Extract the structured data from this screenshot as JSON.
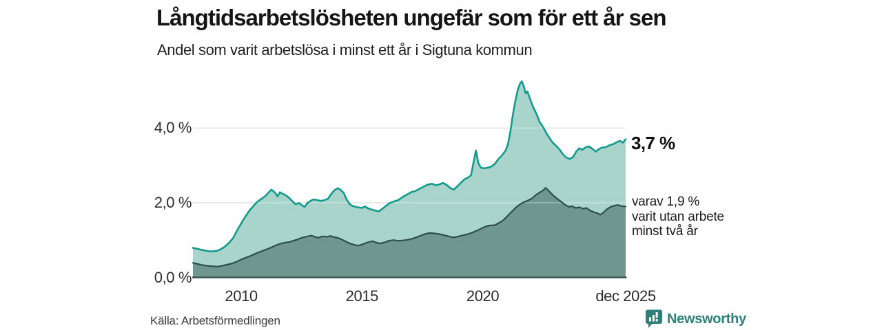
{
  "header": {
    "title": "Långtidsarbetslösheten ungefär som för ett år sen",
    "subtitle": "Andel som varit arbetslösa i minst ett år i Sigtuna kommun"
  },
  "annotations": {
    "latest_total": "3,7 %",
    "breakdown_lines": [
      "varav 1,9 %",
      "varit utan arbete",
      "minst två år"
    ]
  },
  "footer": {
    "source": "Källa: Arbetsförmedlingen",
    "brand": "Newsworthy",
    "brand_icon": "bar-chart-bubble-icon"
  },
  "colors": {
    "series_total_line": "#149a8b",
    "series_total_fill": "#a8d4cc",
    "series_two_years_line": "#2e4f49",
    "series_two_years_fill": "#6f968f",
    "gridline": "#d9d9d9",
    "baseline": "#3a5750",
    "brand_teal": "#2c8078"
  },
  "chart_data": {
    "type": "area",
    "title": "Andel som varit arbetslösa i minst ett år i Sigtuna kommun",
    "unit": "%",
    "xlim": [
      2008,
      2025.92
    ],
    "ylim": [
      0,
      5.6
    ],
    "grid": "horizontal",
    "legend": "none",
    "y_ticks": [
      {
        "label": "4,0 %",
        "value": 4.0
      },
      {
        "label": "2,0 %",
        "value": 2.0
      },
      {
        "label": "0,0 %",
        "value": 0.0
      }
    ],
    "x_ticks": [
      {
        "label": "2010",
        "year": 2010
      },
      {
        "label": "2015",
        "year": 2015
      },
      {
        "label": "2020",
        "year": 2020
      },
      {
        "label": "dec 2025",
        "year": 2025.92
      }
    ],
    "series": [
      {
        "name": "Andel arbetslösa minst ett år",
        "latest_value": 3.7,
        "latest_label": "3,7 %",
        "points": [
          [
            2008.0,
            0.79
          ],
          [
            2008.17,
            0.77
          ],
          [
            2008.33,
            0.74
          ],
          [
            2008.5,
            0.72
          ],
          [
            2008.67,
            0.7
          ],
          [
            2008.83,
            0.7
          ],
          [
            2009.0,
            0.71
          ],
          [
            2009.17,
            0.76
          ],
          [
            2009.33,
            0.83
          ],
          [
            2009.5,
            0.93
          ],
          [
            2009.67,
            1.06
          ],
          [
            2009.83,
            1.26
          ],
          [
            2010.0,
            1.45
          ],
          [
            2010.17,
            1.63
          ],
          [
            2010.33,
            1.78
          ],
          [
            2010.5,
            1.91
          ],
          [
            2010.67,
            2.03
          ],
          [
            2010.83,
            2.1
          ],
          [
            2011.0,
            2.18
          ],
          [
            2011.17,
            2.3
          ],
          [
            2011.25,
            2.35
          ],
          [
            2011.4,
            2.27
          ],
          [
            2011.5,
            2.17
          ],
          [
            2011.6,
            2.28
          ],
          [
            2011.72,
            2.24
          ],
          [
            2011.85,
            2.2
          ],
          [
            2012.0,
            2.12
          ],
          [
            2012.15,
            2.02
          ],
          [
            2012.25,
            1.96
          ],
          [
            2012.4,
            1.99
          ],
          [
            2012.5,
            1.94
          ],
          [
            2012.62,
            1.89
          ],
          [
            2012.75,
            2.0
          ],
          [
            2012.9,
            2.06
          ],
          [
            2013.0,
            2.09
          ],
          [
            2013.15,
            2.07
          ],
          [
            2013.3,
            2.05
          ],
          [
            2013.45,
            2.07
          ],
          [
            2013.6,
            2.11
          ],
          [
            2013.72,
            2.23
          ],
          [
            2013.85,
            2.33
          ],
          [
            2014.0,
            2.39
          ],
          [
            2014.12,
            2.34
          ],
          [
            2014.25,
            2.26
          ],
          [
            2014.37,
            2.08
          ],
          [
            2014.5,
            1.96
          ],
          [
            2014.62,
            1.91
          ],
          [
            2014.75,
            1.89
          ],
          [
            2014.9,
            1.87
          ],
          [
            2015.0,
            1.86
          ],
          [
            2015.12,
            1.9
          ],
          [
            2015.25,
            1.85
          ],
          [
            2015.4,
            1.82
          ],
          [
            2015.55,
            1.79
          ],
          [
            2015.7,
            1.77
          ],
          [
            2015.85,
            1.84
          ],
          [
            2016.0,
            1.92
          ],
          [
            2016.15,
            1.99
          ],
          [
            2016.3,
            2.03
          ],
          [
            2016.5,
            2.07
          ],
          [
            2016.7,
            2.16
          ],
          [
            2016.9,
            2.23
          ],
          [
            2017.05,
            2.29
          ],
          [
            2017.2,
            2.31
          ],
          [
            2017.4,
            2.38
          ],
          [
            2017.55,
            2.43
          ],
          [
            2017.7,
            2.48
          ],
          [
            2017.9,
            2.51
          ],
          [
            2018.05,
            2.47
          ],
          [
            2018.2,
            2.49
          ],
          [
            2018.35,
            2.53
          ],
          [
            2018.5,
            2.48
          ],
          [
            2018.65,
            2.4
          ],
          [
            2018.8,
            2.35
          ],
          [
            2018.95,
            2.44
          ],
          [
            2019.1,
            2.54
          ],
          [
            2019.25,
            2.63
          ],
          [
            2019.4,
            2.68
          ],
          [
            2019.52,
            2.74
          ],
          [
            2019.62,
            3.08
          ],
          [
            2019.72,
            3.4
          ],
          [
            2019.82,
            3.06
          ],
          [
            2019.92,
            2.94
          ],
          [
            2020.08,
            2.92
          ],
          [
            2020.2,
            2.94
          ],
          [
            2020.33,
            2.96
          ],
          [
            2020.5,
            3.04
          ],
          [
            2020.65,
            3.17
          ],
          [
            2020.8,
            3.27
          ],
          [
            2020.95,
            3.4
          ],
          [
            2021.05,
            3.58
          ],
          [
            2021.15,
            3.92
          ],
          [
            2021.25,
            4.36
          ],
          [
            2021.35,
            4.72
          ],
          [
            2021.45,
            5.02
          ],
          [
            2021.55,
            5.2
          ],
          [
            2021.62,
            5.25
          ],
          [
            2021.7,
            5.12
          ],
          [
            2021.78,
            4.93
          ],
          [
            2021.85,
            4.98
          ],
          [
            2021.95,
            4.8
          ],
          [
            2022.05,
            4.62
          ],
          [
            2022.15,
            4.48
          ],
          [
            2022.25,
            4.34
          ],
          [
            2022.35,
            4.17
          ],
          [
            2022.45,
            4.08
          ],
          [
            2022.55,
            3.97
          ],
          [
            2022.65,
            3.85
          ],
          [
            2022.78,
            3.72
          ],
          [
            2022.9,
            3.61
          ],
          [
            2023.05,
            3.52
          ],
          [
            2023.2,
            3.41
          ],
          [
            2023.32,
            3.3
          ],
          [
            2023.45,
            3.22
          ],
          [
            2023.6,
            3.17
          ],
          [
            2023.75,
            3.23
          ],
          [
            2023.88,
            3.38
          ],
          [
            2024.0,
            3.46
          ],
          [
            2024.12,
            3.42
          ],
          [
            2024.25,
            3.48
          ],
          [
            2024.4,
            3.51
          ],
          [
            2024.55,
            3.44
          ],
          [
            2024.68,
            3.37
          ],
          [
            2024.82,
            3.44
          ],
          [
            2024.95,
            3.48
          ],
          [
            2025.1,
            3.49
          ],
          [
            2025.25,
            3.54
          ],
          [
            2025.4,
            3.57
          ],
          [
            2025.55,
            3.62
          ],
          [
            2025.68,
            3.66
          ],
          [
            2025.8,
            3.61
          ],
          [
            2025.92,
            3.7
          ]
        ]
      },
      {
        "name": "Varav utan arbete minst två år",
        "latest_value": 1.9,
        "latest_label": "varav 1,9 %",
        "points": [
          [
            2008.0,
            0.39
          ],
          [
            2008.2,
            0.36
          ],
          [
            2008.4,
            0.33
          ],
          [
            2008.6,
            0.31
          ],
          [
            2008.8,
            0.3
          ],
          [
            2009.0,
            0.29
          ],
          [
            2009.2,
            0.31
          ],
          [
            2009.4,
            0.34
          ],
          [
            2009.6,
            0.37
          ],
          [
            2009.8,
            0.42
          ],
          [
            2010.0,
            0.48
          ],
          [
            2010.2,
            0.53
          ],
          [
            2010.4,
            0.58
          ],
          [
            2010.6,
            0.64
          ],
          [
            2010.8,
            0.69
          ],
          [
            2011.0,
            0.74
          ],
          [
            2011.2,
            0.79
          ],
          [
            2011.4,
            0.85
          ],
          [
            2011.6,
            0.9
          ],
          [
            2011.8,
            0.93
          ],
          [
            2012.0,
            0.95
          ],
          [
            2012.15,
            0.98
          ],
          [
            2012.3,
            1.01
          ],
          [
            2012.45,
            1.05
          ],
          [
            2012.6,
            1.08
          ],
          [
            2012.75,
            1.1
          ],
          [
            2012.9,
            1.12
          ],
          [
            2013.05,
            1.09
          ],
          [
            2013.2,
            1.06
          ],
          [
            2013.35,
            1.1
          ],
          [
            2013.55,
            1.09
          ],
          [
            2013.7,
            1.11
          ],
          [
            2013.85,
            1.08
          ],
          [
            2014.0,
            1.06
          ],
          [
            2014.15,
            1.02
          ],
          [
            2014.3,
            0.97
          ],
          [
            2014.5,
            0.91
          ],
          [
            2014.7,
            0.87
          ],
          [
            2014.85,
            0.85
          ],
          [
            2015.0,
            0.88
          ],
          [
            2015.15,
            0.92
          ],
          [
            2015.3,
            0.95
          ],
          [
            2015.45,
            0.97
          ],
          [
            2015.6,
            0.93
          ],
          [
            2015.75,
            0.91
          ],
          [
            2015.95,
            0.94
          ],
          [
            2016.1,
            0.98
          ],
          [
            2016.3,
            1.0
          ],
          [
            2016.5,
            0.98
          ],
          [
            2016.7,
            0.99
          ],
          [
            2016.9,
            1.01
          ],
          [
            2017.1,
            1.04
          ],
          [
            2017.35,
            1.1
          ],
          [
            2017.6,
            1.16
          ],
          [
            2017.8,
            1.19
          ],
          [
            2018.0,
            1.18
          ],
          [
            2018.2,
            1.16
          ],
          [
            2018.4,
            1.13
          ],
          [
            2018.6,
            1.1
          ],
          [
            2018.78,
            1.07
          ],
          [
            2019.0,
            1.1
          ],
          [
            2019.2,
            1.13
          ],
          [
            2019.4,
            1.16
          ],
          [
            2019.6,
            1.21
          ],
          [
            2019.75,
            1.25
          ],
          [
            2019.92,
            1.3
          ],
          [
            2020.1,
            1.36
          ],
          [
            2020.3,
            1.39
          ],
          [
            2020.5,
            1.4
          ],
          [
            2020.7,
            1.47
          ],
          [
            2020.85,
            1.53
          ],
          [
            2021.0,
            1.63
          ],
          [
            2021.2,
            1.76
          ],
          [
            2021.4,
            1.89
          ],
          [
            2021.6,
            1.98
          ],
          [
            2021.75,
            2.03
          ],
          [
            2021.9,
            2.07
          ],
          [
            2022.05,
            2.12
          ],
          [
            2022.2,
            2.21
          ],
          [
            2022.35,
            2.27
          ],
          [
            2022.5,
            2.33
          ],
          [
            2022.6,
            2.4
          ],
          [
            2022.72,
            2.33
          ],
          [
            2022.85,
            2.24
          ],
          [
            2023.0,
            2.15
          ],
          [
            2023.15,
            2.08
          ],
          [
            2023.3,
            2.0
          ],
          [
            2023.45,
            1.93
          ],
          [
            2023.58,
            1.89
          ],
          [
            2023.7,
            1.91
          ],
          [
            2023.85,
            1.86
          ],
          [
            2024.0,
            1.88
          ],
          [
            2024.15,
            1.84
          ],
          [
            2024.3,
            1.86
          ],
          [
            2024.45,
            1.79
          ],
          [
            2024.6,
            1.75
          ],
          [
            2024.75,
            1.72
          ],
          [
            2024.87,
            1.68
          ],
          [
            2025.0,
            1.74
          ],
          [
            2025.15,
            1.83
          ],
          [
            2025.3,
            1.89
          ],
          [
            2025.45,
            1.92
          ],
          [
            2025.6,
            1.94
          ],
          [
            2025.75,
            1.91
          ],
          [
            2025.92,
            1.9
          ]
        ]
      }
    ]
  }
}
